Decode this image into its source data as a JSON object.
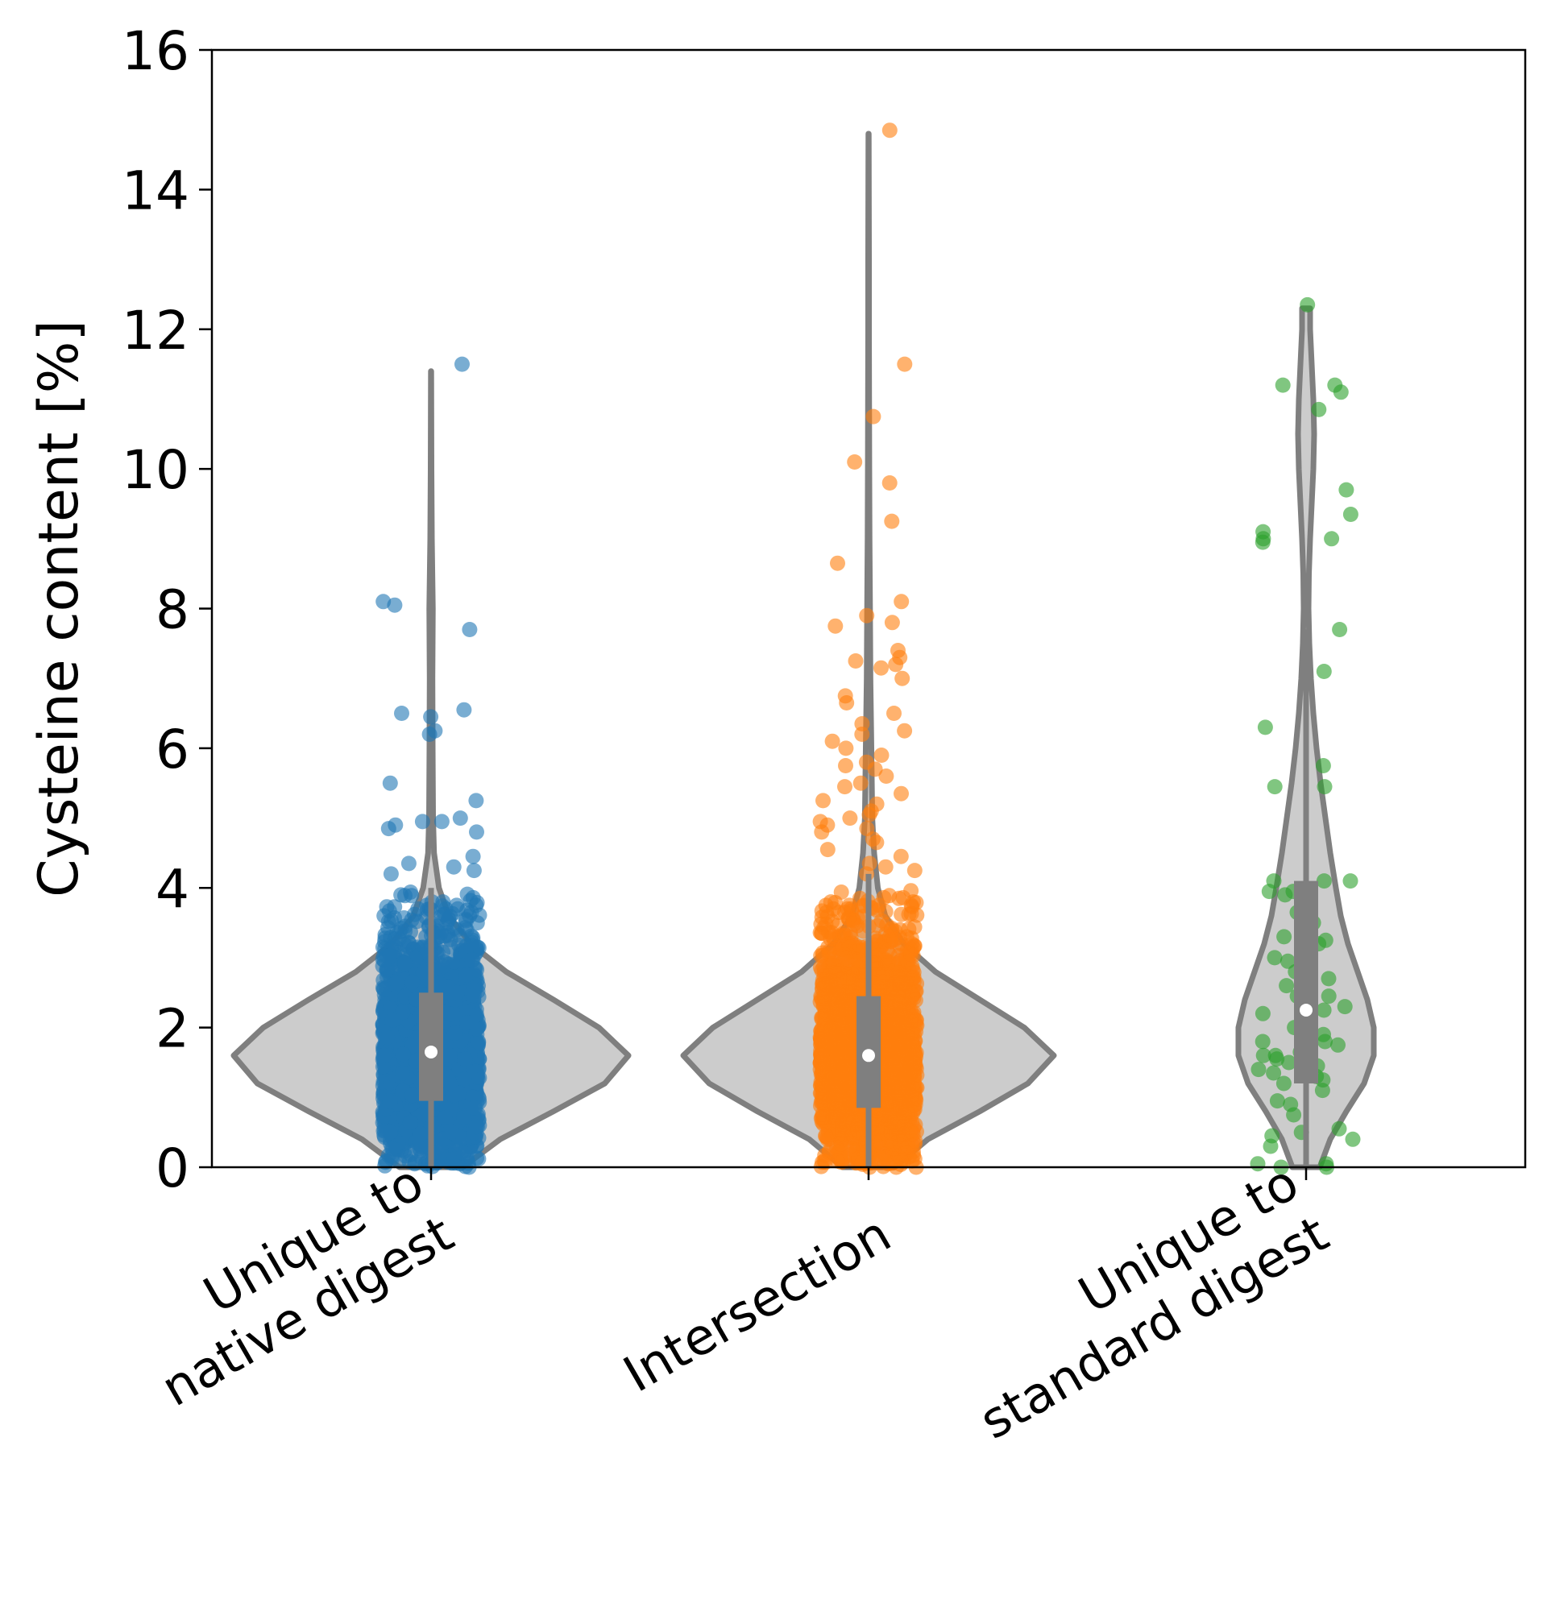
{
  "chart_data": {
    "type": "violin",
    "ylabel": "Cysteine content [%]",
    "xlabel": "",
    "title": "",
    "ylim": [
      0,
      16
    ],
    "yticks": [
      "0",
      "2",
      "4",
      "6",
      "8",
      "10",
      "12",
      "14",
      "16"
    ],
    "grid": false,
    "categories": [
      {
        "lines": [
          "Unique to",
          "native digest"
        ]
      },
      {
        "lines": [
          "Intersection"
        ]
      },
      {
        "lines": [
          "Unique to",
          "standard digest"
        ]
      }
    ],
    "series": [
      {
        "color": "#1f77b4",
        "y_min": 0,
        "y_max": 11.4,
        "q1": 0.95,
        "median": 1.65,
        "q3": 2.5,
        "whisker_low": 0,
        "whisker_high": 4.0,
        "density": [
          [
            0,
            0.16
          ],
          [
            0.4,
            0.35
          ],
          [
            0.8,
            0.62
          ],
          [
            1.2,
            0.88
          ],
          [
            1.6,
            1.0
          ],
          [
            2.0,
            0.85
          ],
          [
            2.4,
            0.62
          ],
          [
            2.8,
            0.38
          ],
          [
            3.2,
            0.2
          ],
          [
            3.6,
            0.09
          ],
          [
            4.0,
            0.04
          ],
          [
            4.5,
            0.015
          ],
          [
            5.0,
            0.01
          ],
          [
            6.0,
            0.008
          ],
          [
            7.0,
            0.007
          ],
          [
            8.0,
            0.009
          ],
          [
            9.0,
            0.004
          ],
          [
            10.0,
            0.002
          ],
          [
            11.4,
            0.001
          ]
        ],
        "outliers": [
          11.5,
          8.1,
          8.05,
          7.7,
          6.55,
          6.5,
          6.45,
          6.25,
          6.2,
          5.5,
          5.25,
          5.0,
          4.95,
          4.95,
          4.9,
          4.85,
          4.8,
          4.45,
          4.35,
          4.3,
          4.25,
          4.2
        ]
      },
      {
        "color": "#ff7f0e",
        "y_min": 0,
        "y_max": 14.8,
        "q1": 0.85,
        "median": 1.6,
        "q3": 2.45,
        "whisker_low": 0,
        "whisker_high": 4.2,
        "density": [
          [
            0,
            0.14
          ],
          [
            0.4,
            0.32
          ],
          [
            0.8,
            0.6
          ],
          [
            1.2,
            0.86
          ],
          [
            1.6,
            1.0
          ],
          [
            2.0,
            0.84
          ],
          [
            2.4,
            0.6
          ],
          [
            2.8,
            0.36
          ],
          [
            3.2,
            0.19
          ],
          [
            3.6,
            0.09
          ],
          [
            4.0,
            0.05
          ],
          [
            4.5,
            0.03
          ],
          [
            5.0,
            0.02
          ],
          [
            6.0,
            0.015
          ],
          [
            7.0,
            0.01
          ],
          [
            8.0,
            0.008
          ],
          [
            9.0,
            0.005
          ],
          [
            10.0,
            0.004
          ],
          [
            11.0,
            0.003
          ],
          [
            12.0,
            0.002
          ],
          [
            13.0,
            0.002
          ],
          [
            14.8,
            0.001
          ]
        ],
        "outliers": [
          14.85,
          11.5,
          10.75,
          10.1,
          9.8,
          9.25,
          8.65,
          8.1,
          7.9,
          7.8,
          7.75,
          7.4,
          7.3,
          7.25,
          7.2,
          7.15,
          7.0,
          6.75,
          6.65,
          6.5,
          6.35,
          6.25,
          6.2,
          6.1,
          6.0,
          5.9,
          5.8,
          5.75,
          5.7,
          5.6,
          5.5,
          5.45,
          5.35,
          5.25,
          5.2,
          5.1,
          5.05,
          5.0,
          4.95,
          4.9,
          4.85,
          4.8,
          4.7,
          4.65,
          4.55,
          4.45,
          4.35,
          4.3,
          4.25,
          4.2
        ]
      },
      {
        "color": "#2ca02c",
        "y_min": 0,
        "y_max": 12.3,
        "q1": 1.2,
        "median": 2.25,
        "q3": 4.1,
        "whisker_low": 0,
        "whisker_high": 7.7,
        "density": [
          [
            0,
            0.17
          ],
          [
            0.4,
            0.3
          ],
          [
            0.8,
            0.5
          ],
          [
            1.2,
            0.72
          ],
          [
            1.6,
            0.84
          ],
          [
            2.0,
            0.84
          ],
          [
            2.4,
            0.76
          ],
          [
            2.8,
            0.64
          ],
          [
            3.2,
            0.52
          ],
          [
            3.6,
            0.43
          ],
          [
            4.0,
            0.37
          ],
          [
            4.5,
            0.3
          ],
          [
            5.0,
            0.24
          ],
          [
            5.5,
            0.18
          ],
          [
            6.0,
            0.13
          ],
          [
            6.5,
            0.09
          ],
          [
            7.0,
            0.06
          ],
          [
            7.5,
            0.04
          ],
          [
            8.0,
            0.03
          ],
          [
            8.5,
            0.035
          ],
          [
            9.0,
            0.05
          ],
          [
            9.5,
            0.07
          ],
          [
            10.0,
            0.09
          ],
          [
            10.5,
            0.1
          ],
          [
            11.0,
            0.09
          ],
          [
            11.5,
            0.07
          ],
          [
            12.0,
            0.05
          ],
          [
            12.3,
            0.05
          ]
        ],
        "points": [
          12.35,
          11.2,
          11.2,
          11.1,
          10.85,
          9.7,
          9.35,
          9.1,
          9.0,
          9.0,
          8.95,
          7.7,
          7.1,
          6.3,
          5.75,
          5.45,
          5.45,
          4.1,
          4.1,
          4.1,
          3.95,
          3.95,
          3.9,
          3.65,
          3.5,
          3.3,
          3.25,
          3.2,
          3.1,
          3.0,
          2.95,
          2.8,
          2.7,
          2.6,
          2.45,
          2.45,
          2.3,
          2.25,
          2.2,
          2.0,
          1.9,
          1.8,
          1.8,
          1.75,
          1.65,
          1.6,
          1.6,
          1.55,
          1.5,
          1.45,
          1.4,
          1.35,
          1.3,
          1.25,
          1.2,
          1.1,
          0.95,
          0.9,
          0.75,
          0.55,
          0.5,
          0.45,
          0.4,
          0.3,
          0.05,
          0.05,
          0.0,
          0.0
        ]
      }
    ]
  }
}
